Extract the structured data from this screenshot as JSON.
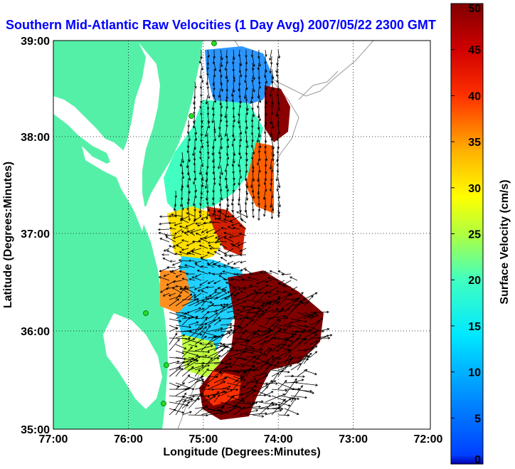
{
  "title": "Southern Mid-Atlantic Raw Velocities (1 Day Avg) 2007/05/22 2300 GMT",
  "xaxis": {
    "label": "Longitude (Degrees:Minutes)",
    "ticks": [
      "77:00",
      "76:00",
      "75:00",
      "74:00",
      "73:00",
      "72:00"
    ]
  },
  "yaxis": {
    "label": "Latitude (Degrees:Minutes)",
    "ticks": [
      "39:00",
      "38:00",
      "37:00",
      "36:00",
      "35:00"
    ]
  },
  "colorbar": {
    "label": "Surface Velocity (cm/s)",
    "min": 0,
    "max": 50,
    "ticks": [
      "0",
      "5",
      "10",
      "15",
      "20",
      "25",
      "30",
      "35",
      "40",
      "45",
      "50"
    ],
    "colormap": "jet"
  },
  "colors": {
    "land": "#55f0a8",
    "title_text": "#0000ff",
    "station": "#22dd22"
  },
  "map": {
    "lon_range": [
      -77,
      -72
    ],
    "lat_range": [
      35,
      39
    ],
    "grid": "dotted",
    "stations": 5
  }
}
